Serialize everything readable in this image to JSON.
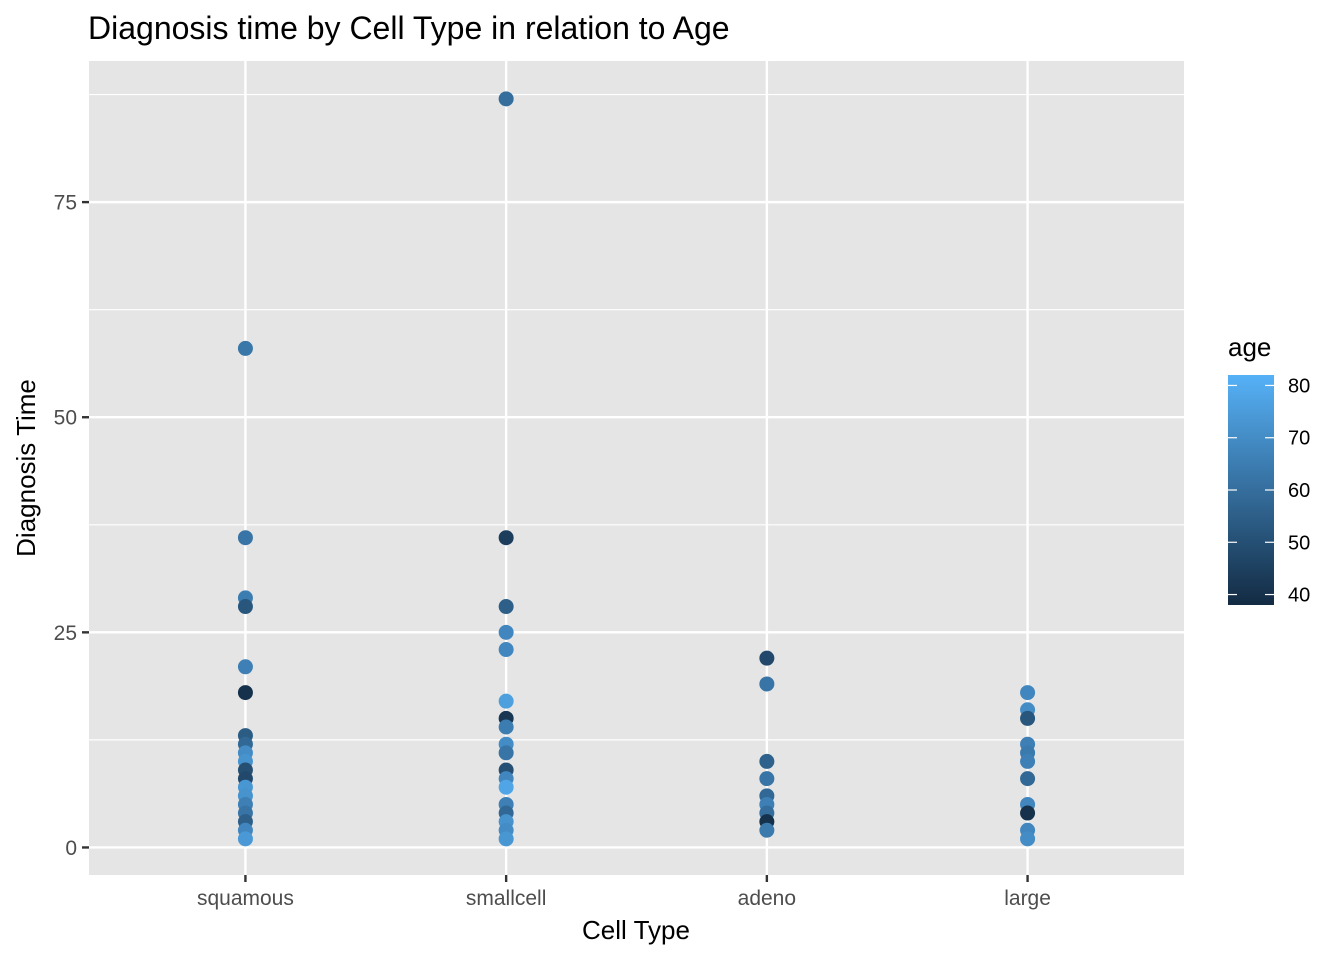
{
  "chart_data": {
    "type": "scatter",
    "title": "Diagnosis time by Cell Type in relation to Age",
    "xlabel": "Cell Type",
    "ylabel": "Diagnosis Time",
    "categories": [
      "squamous",
      "smallcell",
      "adeno",
      "large"
    ],
    "ylim": [
      -3.2,
      91.4
    ],
    "y_ticks": [
      0,
      25,
      50,
      75
    ],
    "grid": true,
    "legend": {
      "title": "age",
      "placement": "right",
      "type": "colorbar",
      "min": 38,
      "max": 82,
      "ticks": [
        40,
        50,
        60,
        70,
        80
      ],
      "color_low": "#132b43",
      "color_high": "#56b1f7"
    },
    "colors": {
      "panel_background": "#e5e5e5",
      "grid": "#ffffff",
      "low": "#132b43",
      "high": "#56b1f7"
    },
    "points": [
      {
        "x": "squamous",
        "y": 58,
        "age": 63
      },
      {
        "x": "squamous",
        "y": 36,
        "age": 62
      },
      {
        "x": "squamous",
        "y": 29,
        "age": 65
      },
      {
        "x": "squamous",
        "y": 28,
        "age": 52
      },
      {
        "x": "squamous",
        "y": 21,
        "age": 66
      },
      {
        "x": "squamous",
        "y": 18,
        "age": 40
      },
      {
        "x": "squamous",
        "y": 13,
        "age": 54
      },
      {
        "x": "squamous",
        "y": 12,
        "age": 58
      },
      {
        "x": "squamous",
        "y": 11,
        "age": 70
      },
      {
        "x": "squamous",
        "y": 10,
        "age": 72
      },
      {
        "x": "squamous",
        "y": 9,
        "age": 50
      },
      {
        "x": "squamous",
        "y": 8,
        "age": 48
      },
      {
        "x": "squamous",
        "y": 7,
        "age": 73
      },
      {
        "x": "squamous",
        "y": 6,
        "age": 72
      },
      {
        "x": "squamous",
        "y": 5,
        "age": 66
      },
      {
        "x": "squamous",
        "y": 4,
        "age": 62
      },
      {
        "x": "squamous",
        "y": 3,
        "age": 55
      },
      {
        "x": "squamous",
        "y": 2,
        "age": 68
      },
      {
        "x": "squamous",
        "y": 1,
        "age": 74
      },
      {
        "x": "smallcell",
        "y": 87,
        "age": 60
      },
      {
        "x": "smallcell",
        "y": 36,
        "age": 44
      },
      {
        "x": "smallcell",
        "y": 28,
        "age": 55
      },
      {
        "x": "smallcell",
        "y": 25,
        "age": 68
      },
      {
        "x": "smallcell",
        "y": 23,
        "age": 68
      },
      {
        "x": "smallcell",
        "y": 17,
        "age": 76
      },
      {
        "x": "smallcell",
        "y": 15,
        "age": 42
      },
      {
        "x": "smallcell",
        "y": 14,
        "age": 65
      },
      {
        "x": "smallcell",
        "y": 12,
        "age": 70
      },
      {
        "x": "smallcell",
        "y": 11,
        "age": 62
      },
      {
        "x": "smallcell",
        "y": 9,
        "age": 50
      },
      {
        "x": "smallcell",
        "y": 8,
        "age": 68
      },
      {
        "x": "smallcell",
        "y": 7,
        "age": 78
      },
      {
        "x": "smallcell",
        "y": 5,
        "age": 66
      },
      {
        "x": "smallcell",
        "y": 4,
        "age": 58
      },
      {
        "x": "smallcell",
        "y": 3,
        "age": 72
      },
      {
        "x": "smallcell",
        "y": 2,
        "age": 70
      },
      {
        "x": "smallcell",
        "y": 1,
        "age": 73
      },
      {
        "x": "adeno",
        "y": 22,
        "age": 48
      },
      {
        "x": "adeno",
        "y": 19,
        "age": 62
      },
      {
        "x": "adeno",
        "y": 10,
        "age": 56
      },
      {
        "x": "adeno",
        "y": 8,
        "age": 62
      },
      {
        "x": "adeno",
        "y": 6,
        "age": 58
      },
      {
        "x": "adeno",
        "y": 5,
        "age": 66
      },
      {
        "x": "adeno",
        "y": 4,
        "age": 60
      },
      {
        "x": "adeno",
        "y": 3,
        "age": 40
      },
      {
        "x": "adeno",
        "y": 2,
        "age": 64
      },
      {
        "x": "large",
        "y": 18,
        "age": 68
      },
      {
        "x": "large",
        "y": 16,
        "age": 70
      },
      {
        "x": "large",
        "y": 15,
        "age": 52
      },
      {
        "x": "large",
        "y": 12,
        "age": 66
      },
      {
        "x": "large",
        "y": 11,
        "age": 64
      },
      {
        "x": "large",
        "y": 10,
        "age": 66
      },
      {
        "x": "large",
        "y": 8,
        "age": 58
      },
      {
        "x": "large",
        "y": 5,
        "age": 68
      },
      {
        "x": "large",
        "y": 4,
        "age": 40
      },
      {
        "x": "large",
        "y": 2,
        "age": 68
      },
      {
        "x": "large",
        "y": 1,
        "age": 70
      }
    ]
  }
}
